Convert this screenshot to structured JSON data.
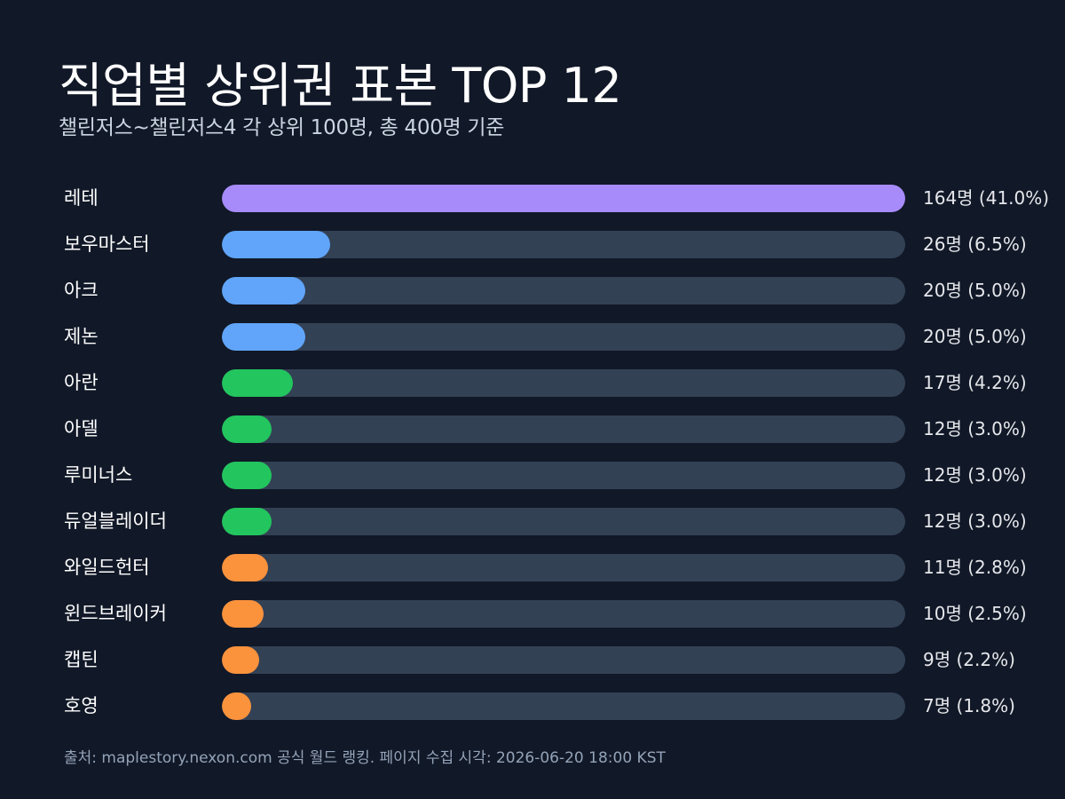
{
  "header": {
    "title": "직업별 상위권 표본 TOP 12",
    "subtitle": "챌린저스~챌린저스4 각 상위 100명, 총 400명 기준"
  },
  "footer": {
    "source": "출처: maplestory.nexon.com 공식 월드 랭킹. 페이지 수집 시각: 2026-06-20 18:00 KST"
  },
  "colors": {
    "background": "#111827",
    "track": "#334155",
    "purple": "#a78bfa",
    "blue": "#60a5fa",
    "green": "#22c55e",
    "orange": "#fb923c"
  },
  "chart_data": {
    "type": "bar",
    "orientation": "horizontal",
    "title": "직업별 상위권 표본 TOP 12",
    "subtitle": "챌린저스~챌린저스4 각 상위 100명, 총 400명 기준",
    "xlim": [
      0,
      164
    ],
    "grid": false,
    "categories": [
      "레테",
      "보우마스터",
      "아크",
      "제논",
      "아란",
      "아델",
      "루미너스",
      "듀얼블레이더",
      "와일드헌터",
      "윈드브레이커",
      "캡틴",
      "호영"
    ],
    "values": [
      164,
      26,
      20,
      20,
      17,
      12,
      12,
      12,
      11,
      10,
      9,
      7
    ],
    "value_labels": [
      "164명 (41.0%)",
      "26명 (6.5%)",
      "20명 (5.0%)",
      "20명 (5.0%)",
      "17명 (4.2%)",
      "12명 (3.0%)",
      "12명 (3.0%)",
      "12명 (3.0%)",
      "11명 (2.8%)",
      "10명 (2.5%)",
      "9명 (2.2%)",
      "7명 (1.8%)"
    ],
    "bar_colors": [
      "#a78bfa",
      "#60a5fa",
      "#60a5fa",
      "#60a5fa",
      "#22c55e",
      "#22c55e",
      "#22c55e",
      "#22c55e",
      "#fb923c",
      "#fb923c",
      "#fb923c",
      "#fb923c"
    ]
  }
}
